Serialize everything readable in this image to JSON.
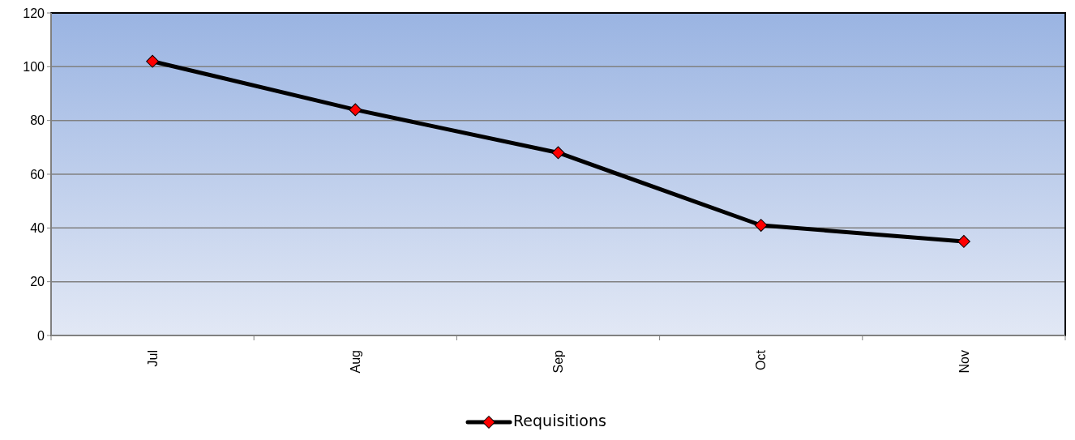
{
  "chart_data": {
    "type": "line",
    "categories": [
      "Jul",
      "Aug",
      "Sep",
      "Oct",
      "Nov"
    ],
    "series": [
      {
        "name": "Requisitions",
        "color": "#000000",
        "values": [
          102,
          84,
          68,
          41,
          35
        ]
      }
    ],
    "ylim": [
      0,
      120
    ],
    "yticks": [
      0,
      20,
      40,
      60,
      80,
      100,
      120
    ],
    "grid": "y",
    "legend": "bottom",
    "marker": "diamond",
    "line_style": "solid"
  }
}
